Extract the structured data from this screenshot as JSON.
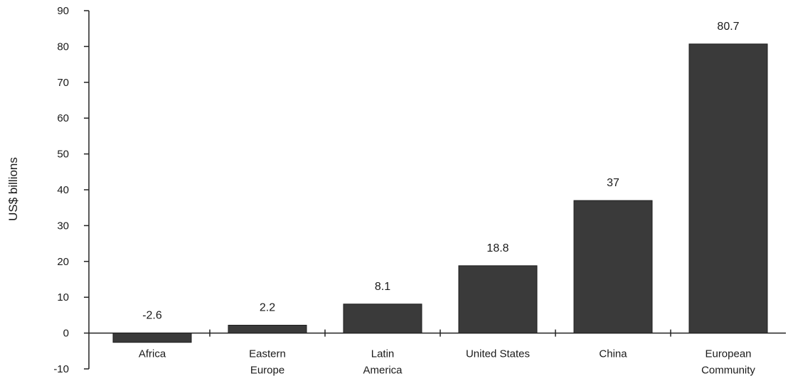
{
  "chart_data": {
    "type": "bar",
    "title": "",
    "xlabel": "",
    "ylabel": "US$ billions",
    "ylim": [
      -10,
      90
    ],
    "yticks": [
      -10,
      0,
      10,
      20,
      30,
      40,
      50,
      60,
      70,
      80,
      90
    ],
    "categories": [
      [
        "Africa"
      ],
      [
        "Eastern",
        "Europe"
      ],
      [
        "Latin",
        "America"
      ],
      [
        "United States"
      ],
      [
        "China"
      ],
      [
        "European",
        "Community"
      ]
    ],
    "values": [
      -2.6,
      2.2,
      8.1,
      18.8,
      37,
      80.7
    ],
    "data_labels": [
      "-2.6",
      "2.2",
      "8.1",
      "18.8",
      "37",
      "80.7"
    ],
    "grid": false,
    "legend": "none",
    "bar_color": "#3a3a3a"
  }
}
